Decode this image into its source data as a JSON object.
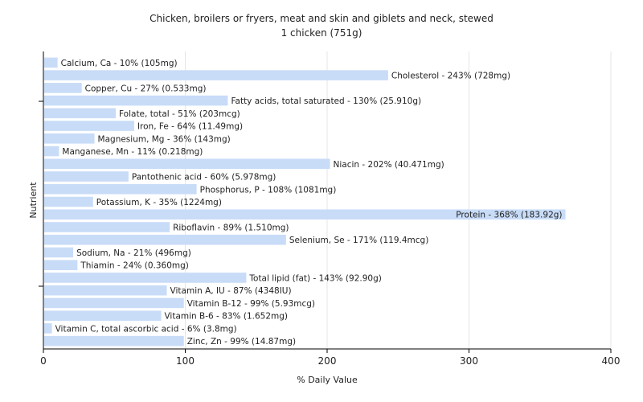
{
  "chart_data": {
    "type": "bar",
    "orientation": "horizontal",
    "title": "Chicken, broilers or fryers, meat and skin and giblets and neck, stewed",
    "subtitle": "1 chicken (751g)",
    "xlabel": "% Daily Value",
    "ylabel": "Nutrient",
    "xlim": [
      0,
      400
    ],
    "xticks": [
      0,
      100,
      200,
      300,
      400
    ],
    "grid": true,
    "bar_color": "#c8dcf8",
    "categories": [
      "Calcium, Ca",
      "Cholesterol",
      "Copper, Cu",
      "Fatty acids, total saturated",
      "Folate, total",
      "Iron, Fe",
      "Magnesium, Mg",
      "Manganese, Mn",
      "Niacin",
      "Pantothenic acid",
      "Phosphorus, P",
      "Potassium, K",
      "Protein",
      "Riboflavin",
      "Selenium, Se",
      "Sodium, Na",
      "Thiamin",
      "Total lipid (fat)",
      "Vitamin A, IU",
      "Vitamin B-12",
      "Vitamin B-6",
      "Vitamin C, total ascorbic acid",
      "Zinc, Zn"
    ],
    "values": [
      10,
      243,
      27,
      130,
      51,
      64,
      36,
      11,
      202,
      60,
      108,
      35,
      368,
      89,
      171,
      21,
      24,
      143,
      87,
      99,
      83,
      6,
      99
    ],
    "labels": [
      "Calcium, Ca - 10% (105mg)",
      "Cholesterol - 243% (728mg)",
      "Copper, Cu - 27% (0.533mg)",
      "Fatty acids, total saturated - 130% (25.910g)",
      "Folate, total - 51% (203mcg)",
      "Iron, Fe - 64% (11.49mg)",
      "Magnesium, Mg - 36% (143mg)",
      "Manganese, Mn - 11% (0.218mg)",
      "Niacin - 202% (40.471mg)",
      "Pantothenic acid - 60% (5.978mg)",
      "Phosphorus, P - 108% (1081mg)",
      "Potassium, K - 35% (1224mg)",
      "Protein - 368% (183.92g)",
      "Riboflavin - 89% (1.510mg)",
      "Selenium, Se - 171% (119.4mcg)",
      "Sodium, Na - 21% (496mg)",
      "Thiamin - 24% (0.360mg)",
      "Total lipid (fat) - 143% (92.90g)",
      "Vitamin A, IU - 87% (4348IU)",
      "Vitamin B-12 - 99% (5.93mcg)",
      "Vitamin B-6 - 83% (1.652mg)",
      "Vitamin C, total ascorbic acid - 6% (3.8mg)",
      "Zinc, Zn - 99% (14.87mg)"
    ]
  }
}
